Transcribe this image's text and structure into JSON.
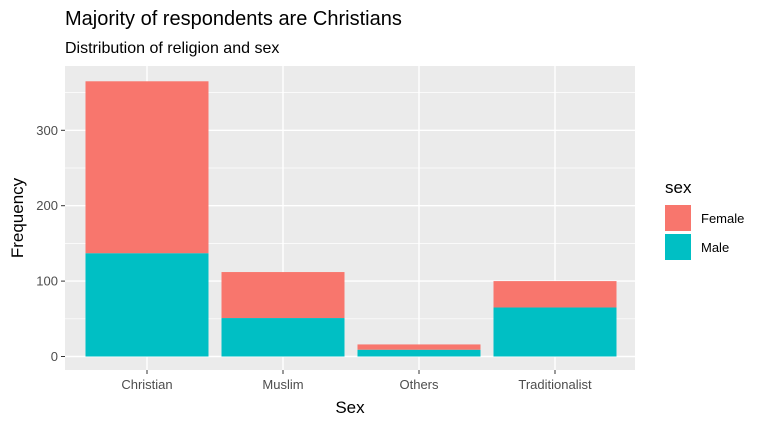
{
  "chart_data": {
    "type": "bar",
    "stacked": true,
    "title": "Majority of respondents are Christians",
    "subtitle": "Distribution of religion and sex",
    "xlabel": "Sex",
    "ylabel": "Frequency",
    "categories": [
      "Christian",
      "Muslim",
      "Others",
      "Traditionalist"
    ],
    "series": [
      {
        "name": "Female",
        "values": [
          228,
          61,
          7,
          35
        ],
        "color": "#F8766D"
      },
      {
        "name": "Male",
        "values": [
          137,
          51,
          9,
          65
        ],
        "color": "#00BFC4"
      }
    ],
    "ylim": [
      0,
      383
    ],
    "yticks": [
      0,
      100,
      200,
      300
    ],
    "grid": true,
    "legend": {
      "title": "sex",
      "placement": "right"
    },
    "panel_background": "#EBEBEB",
    "grid_color": "#FFFFFF"
  }
}
